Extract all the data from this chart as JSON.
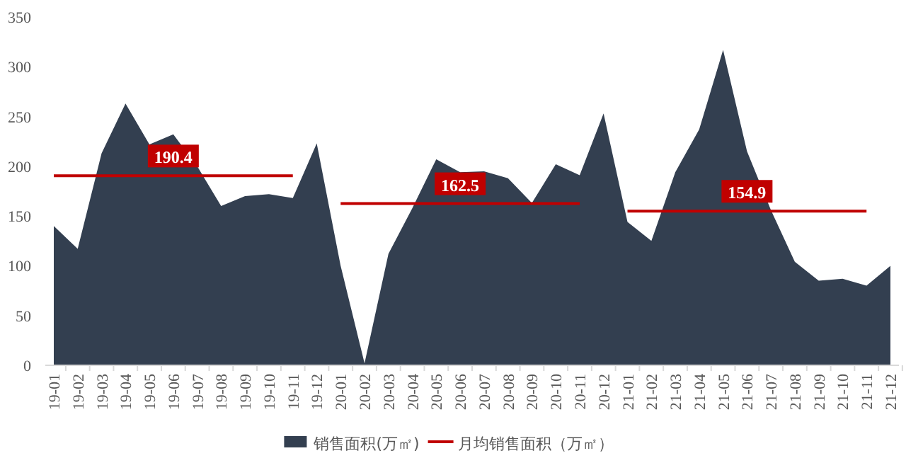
{
  "chart_data": {
    "type": "area",
    "categories": [
      "19-01",
      "19-02",
      "19-03",
      "19-04",
      "19-05",
      "19-06",
      "19-07",
      "19-08",
      "19-09",
      "19-10",
      "19-11",
      "19-12",
      "20-01",
      "20-02",
      "20-03",
      "20-04",
      "20-05",
      "20-06",
      "20-07",
      "20-08",
      "20-09",
      "20-10",
      "20-11",
      "20-12",
      "21-01",
      "21-02",
      "21-03",
      "21-04",
      "21-05",
      "21-06",
      "21-07",
      "21-08",
      "21-09",
      "21-10",
      "21-11",
      "21-12"
    ],
    "series": [
      {
        "name": "销售面积(万㎡)",
        "color": "#333f50",
        "values": [
          140,
          117,
          213,
          263,
          222,
          232,
          200,
          160,
          170,
          172,
          168,
          223,
          100,
          2,
          112,
          158,
          207,
          194,
          195,
          188,
          163,
          202,
          191,
          253,
          144,
          125,
          194,
          237,
          317,
          215,
          156,
          104,
          85,
          87,
          80,
          100
        ]
      },
      {
        "name": "月均销售面积（万㎡）",
        "type": "line",
        "color": "#c00000",
        "values": [
          190.4,
          190.4,
          190.4,
          190.4,
          190.4,
          190.4,
          190.4,
          190.4,
          190.4,
          190.4,
          190.4,
          null,
          162.5,
          162.5,
          162.5,
          162.5,
          162.5,
          162.5,
          162.5,
          162.5,
          162.5,
          162.5,
          162.5,
          null,
          154.9,
          154.9,
          154.9,
          154.9,
          154.9,
          154.9,
          154.9,
          154.9,
          154.9,
          154.9,
          154.9,
          null
        ],
        "value_labels": [
          null,
          null,
          null,
          null,
          null,
          "190.4",
          null,
          null,
          null,
          null,
          null,
          null,
          null,
          null,
          null,
          null,
          null,
          "162.5",
          null,
          null,
          null,
          null,
          null,
          null,
          null,
          null,
          null,
          null,
          null,
          "154.9",
          null,
          null,
          null,
          null,
          null,
          null
        ]
      }
    ],
    "ylim": [
      0,
      350
    ],
    "yticks": [
      0,
      50,
      100,
      150,
      200,
      250,
      300,
      350
    ],
    "grid": false,
    "legend": "bottom"
  }
}
